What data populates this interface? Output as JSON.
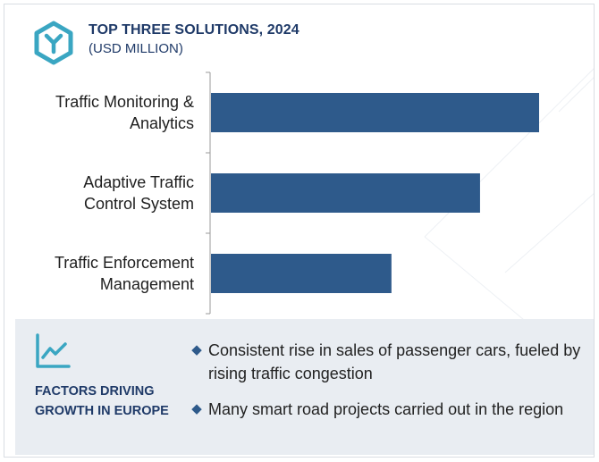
{
  "header": {
    "title": "TOP THREE SOLUTIONS, 2024",
    "subtitle": "(USD MILLION)"
  },
  "icons": {
    "logo": "hexagon-y-logo",
    "factors": "trend-line-icon",
    "bullet": "diamond-bullet"
  },
  "colors": {
    "bar": "#2e5a8b",
    "accent_teal": "#3aa6c2",
    "title_navy": "#1f3a68",
    "panel_bg": "#e9edf2"
  },
  "chart_data": {
    "type": "bar",
    "orientation": "horizontal",
    "title": "TOP THREE SOLUTIONS, 2024",
    "subtitle": "(USD MILLION)",
    "categories": [
      [
        "Traffic Monitoring &",
        "Analytics"
      ],
      [
        "Adaptive Traffic",
        "Control System"
      ],
      [
        "Traffic Enforcement",
        "Management"
      ]
    ],
    "values": [
      100,
      82,
      55
    ],
    "value_axis_shown": false,
    "grid": false,
    "legend": "none"
  },
  "factors": {
    "title": "FACTORS DRIVING GROWTH IN EUROPE",
    "bullets": [
      "Consistent rise in sales of passenger cars, fueled by rising traffic congestion",
      "Many smart road projects carried out in the region"
    ],
    "bullet_glyph": "◆"
  }
}
